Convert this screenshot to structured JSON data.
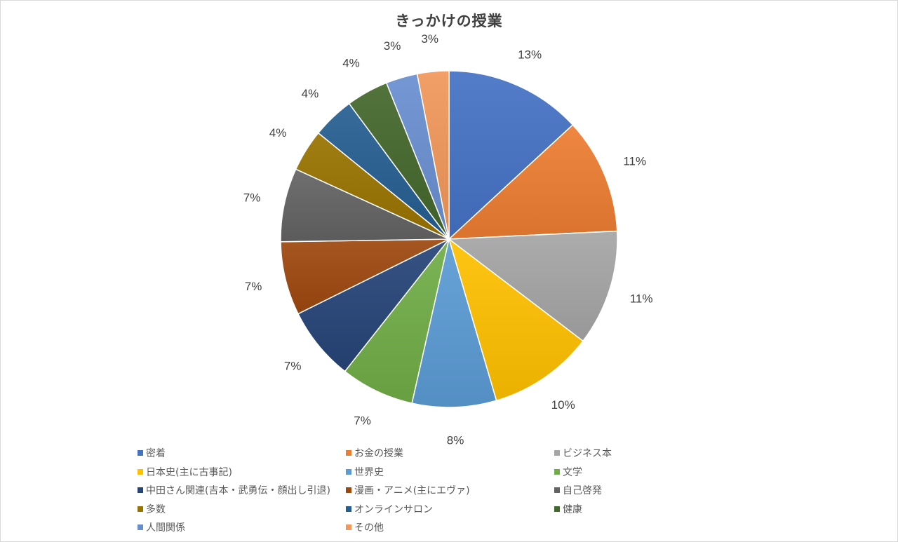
{
  "chart_data": {
    "type": "pie",
    "title": "きっかけの授業",
    "start_angle_deg": 0,
    "direction": "clockwise",
    "legend_position": "bottom",
    "label_suffix": "%",
    "slices": [
      {
        "label": "密着",
        "value": 13,
        "color": "#4472C4"
      },
      {
        "label": "お金の授業",
        "value": 11,
        "color": "#ED7D31"
      },
      {
        "label": "ビジネス本",
        "value": 11,
        "color": "#A5A5A5"
      },
      {
        "label": "日本史(主に古事記)",
        "value": 10,
        "color": "#FFC000"
      },
      {
        "label": "世界史",
        "value": 8,
        "color": "#5B9BD5"
      },
      {
        "label": "文学",
        "value": 7,
        "color": "#70AD47"
      },
      {
        "label": "中田さん関連(吉本・武勇伝・顔出し引退)",
        "value": 7,
        "color": "#264478"
      },
      {
        "label": "漫画・アニメ(主にエヴァ)",
        "value": 7,
        "color": "#9E480E"
      },
      {
        "label": "自己啓発",
        "value": 7,
        "color": "#636363"
      },
      {
        "label": "多数",
        "value": 4,
        "color": "#997300"
      },
      {
        "label": "オンラインサロン",
        "value": 4,
        "color": "#255E91"
      },
      {
        "label": "健康",
        "value": 4,
        "color": "#43682B"
      },
      {
        "label": "人間関係",
        "value": 3,
        "color": "#698ED0"
      },
      {
        "label": "その他",
        "value": 3,
        "color": "#F1975A"
      }
    ]
  }
}
